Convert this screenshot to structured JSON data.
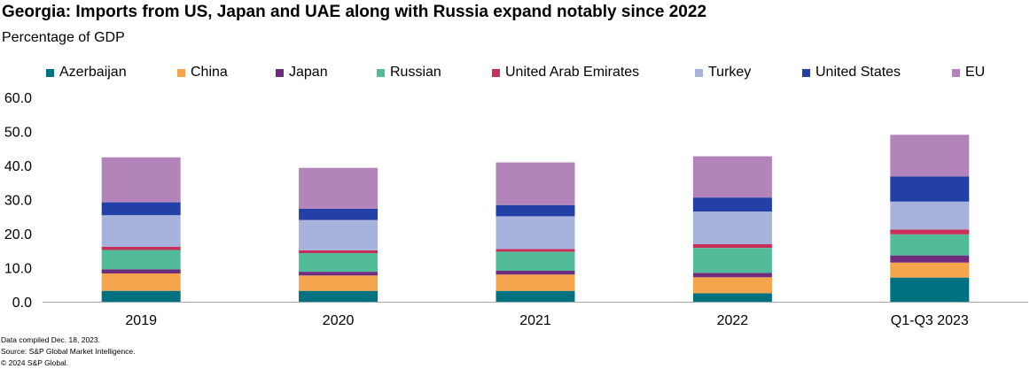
{
  "header": {
    "title": "Georgia: Imports from US, Japan and UAE along with Russia expand notably since 2022",
    "subtitle": "Percentage of GDP"
  },
  "legend": [
    {
      "label": "Azerbaijan",
      "color": "#007180"
    },
    {
      "label": "China",
      "color": "#F4A54B"
    },
    {
      "label": "Japan",
      "color": "#6F2C7F"
    },
    {
      "label": "Russian",
      "color": "#52BC9A"
    },
    {
      "label": "United Arab Emirates",
      "color": "#C8305A"
    },
    {
      "label": "Turkey",
      "color": "#A7B3DD"
    },
    {
      "label": "United States",
      "color": "#2340A8"
    },
    {
      "label": "EU",
      "color": "#B384B9"
    }
  ],
  "chart_data": {
    "type": "bar",
    "stacked": true,
    "title": "Georgia: Imports from US, Japan and UAE along with Russia expand notably since 2022",
    "ylabel": "Percentage of GDP",
    "xlabel": "",
    "ylim": [
      0,
      60
    ],
    "yticks": [
      "0.0",
      "10.0",
      "20.0",
      "30.0",
      "40.0",
      "50.0",
      "60.0"
    ],
    "categories": [
      "2019",
      "2020",
      "2021",
      "2022",
      "Q1-Q3 2023"
    ],
    "series": [
      {
        "name": "Azerbaijan",
        "color": "#007180",
        "values": [
          3.2,
          3.2,
          3.2,
          2.5,
          7.1
        ]
      },
      {
        "name": "China",
        "color": "#F4A54B",
        "values": [
          5.1,
          4.5,
          4.8,
          4.7,
          4.4
        ]
      },
      {
        "name": "Japan",
        "color": "#6F2C7F",
        "values": [
          1.2,
          1.1,
          1.1,
          1.3,
          2.1
        ]
      },
      {
        "name": "Russian",
        "color": "#52BC9A",
        "values": [
          5.7,
          5.5,
          5.6,
          7.3,
          6.2
        ]
      },
      {
        "name": "United Arab Emirates",
        "color": "#C8305A",
        "values": [
          0.9,
          0.8,
          0.8,
          1.1,
          1.4
        ]
      },
      {
        "name": "Turkey",
        "color": "#A7B3DD",
        "values": [
          9.3,
          8.9,
          9.6,
          9.6,
          8.2
        ]
      },
      {
        "name": "United States",
        "color": "#2340A8",
        "values": [
          3.8,
          3.3,
          3.3,
          4.1,
          7.4
        ]
      },
      {
        "name": "EU",
        "color": "#B384B9",
        "values": [
          13.2,
          12.0,
          12.5,
          12.1,
          12.2
        ]
      }
    ]
  },
  "footer": {
    "line1": "Data compiled Dec. 18, 2023.",
    "line2": "Source: S&P Global Market Intelligence.",
    "line3": "© 2024 S&P Global."
  }
}
